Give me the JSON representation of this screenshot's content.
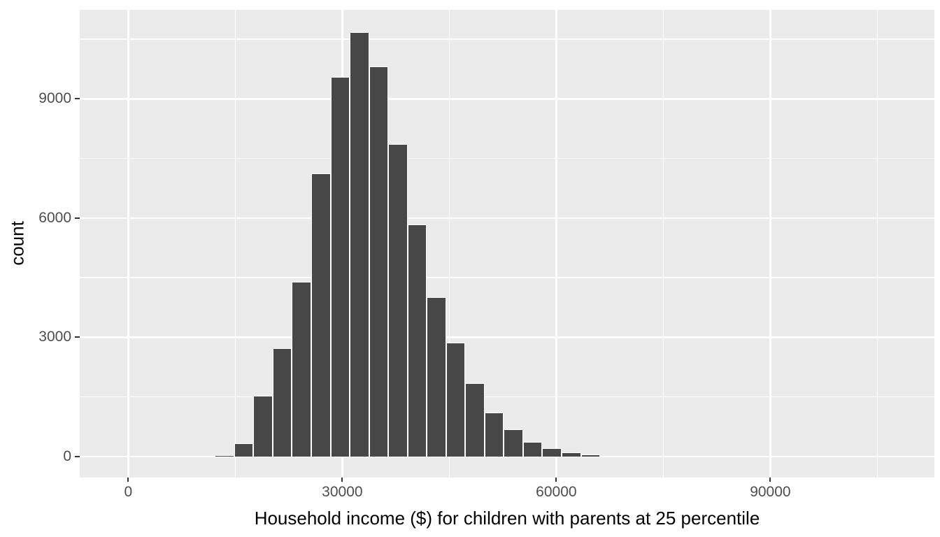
{
  "figure": {
    "kind": "ggplot-histogram",
    "background": "#FFFFFF"
  },
  "chart_data": {
    "type": "bar",
    "subtype": "histogram",
    "title": "",
    "xlabel": "Household income ($) for children with parents at 25 percentile",
    "ylabel": "count",
    "bin_width": 2700,
    "bins": [
      {
        "center": 8100,
        "count": 5
      },
      {
        "center": 10800,
        "count": 12
      },
      {
        "center": 13500,
        "count": 30
      },
      {
        "center": 16200,
        "count": 330
      },
      {
        "center": 18900,
        "count": 1520
      },
      {
        "center": 21600,
        "count": 2720
      },
      {
        "center": 24300,
        "count": 4390
      },
      {
        "center": 27000,
        "count": 7130
      },
      {
        "center": 29700,
        "count": 9550
      },
      {
        "center": 32400,
        "count": 10670
      },
      {
        "center": 35100,
        "count": 9820
      },
      {
        "center": 37800,
        "count": 7870
      },
      {
        "center": 40500,
        "count": 5840
      },
      {
        "center": 43200,
        "count": 4010
      },
      {
        "center": 45900,
        "count": 2870
      },
      {
        "center": 48600,
        "count": 1840
      },
      {
        "center": 51300,
        "count": 1110
      },
      {
        "center": 54000,
        "count": 690
      },
      {
        "center": 56700,
        "count": 375
      },
      {
        "center": 59400,
        "count": 205
      },
      {
        "center": 62100,
        "count": 105
      },
      {
        "center": 64800,
        "count": 47
      },
      {
        "center": 67500,
        "count": 20
      },
      {
        "center": 70200,
        "count": 10
      }
    ],
    "x_ticks": [
      0,
      30000,
      60000,
      90000
    ],
    "x_tick_labels": [
      "0",
      "30000",
      "60000",
      "90000"
    ],
    "x_minor_ticks": [
      15000,
      45000,
      75000,
      105000
    ],
    "y_ticks": [
      0,
      3000,
      6000,
      9000
    ],
    "y_tick_labels": [
      "0",
      "3000",
      "6000",
      "9000"
    ],
    "y_minor_ticks": [
      1500,
      4500,
      7500,
      10500
    ],
    "x_range": [
      -6800,
      113000
    ],
    "y_range": [
      -530,
      11240
    ],
    "grid": "on",
    "legend": "none",
    "colors": {
      "bar_fill": "#474747",
      "bar_outline": "#FFFFFF",
      "panel_background": "#EBEBEB",
      "gridline": "#FFFFFF",
      "tick_label": "#4D4D4D",
      "axis_title": "#000000",
      "tick_mark": "#333333"
    }
  }
}
